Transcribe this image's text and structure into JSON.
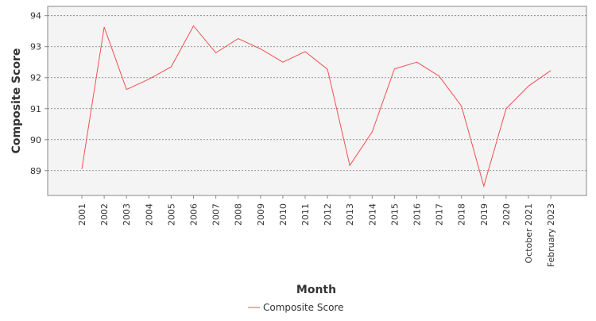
{
  "chart_data": {
    "type": "line",
    "title": "",
    "xlabel": "Month",
    "ylabel": "Composite Score",
    "categories": [
      "2001",
      "2002",
      "2003",
      "2004",
      "2005",
      "2006",
      "2007",
      "2008",
      "2009",
      "2010",
      "2011",
      "2012",
      "2013",
      "2014",
      "2015",
      "2016",
      "2017",
      "2018",
      "2019",
      "2020",
      "October 2021",
      "February 2023"
    ],
    "series": [
      {
        "name": "Composite Score",
        "color": "#f25050",
        "values": [
          89.05,
          93.63,
          91.62,
          91.95,
          92.35,
          93.67,
          92.8,
          93.26,
          92.93,
          92.5,
          92.84,
          92.27,
          89.17,
          90.25,
          92.28,
          92.5,
          92.05,
          91.08,
          88.5,
          91.0,
          91.73,
          92.23
        ]
      }
    ],
    "ylim": [
      88.2,
      94.3
    ],
    "yticks": [
      89,
      90,
      91,
      92,
      93,
      94
    ],
    "grid": true,
    "legend_position": "bottom-center"
  }
}
